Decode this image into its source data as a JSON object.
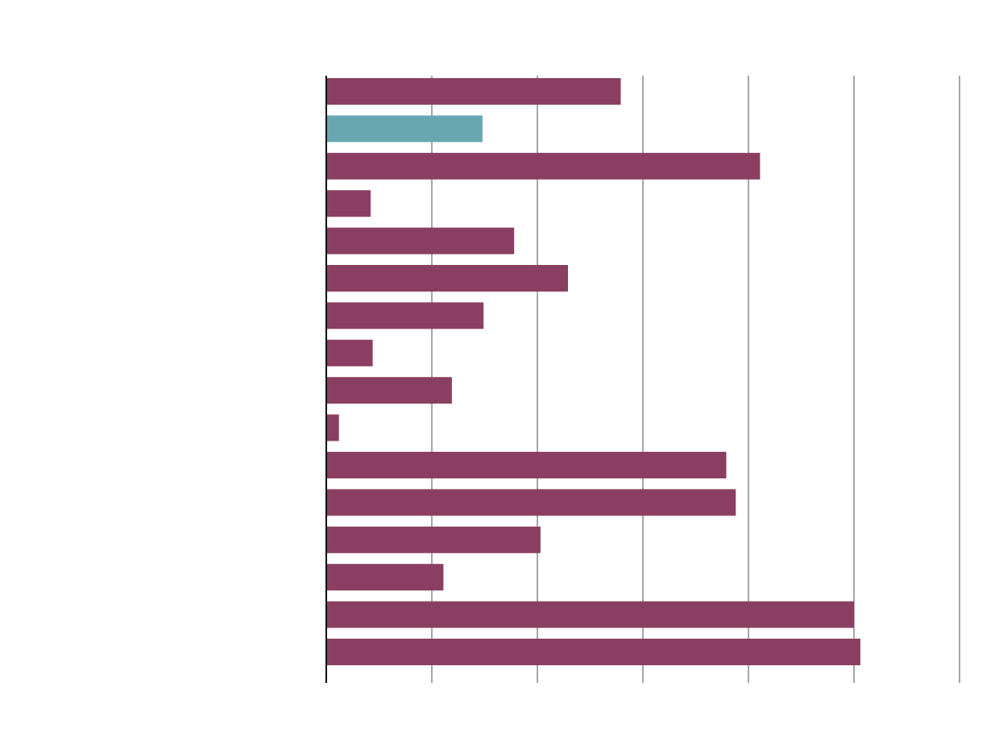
{
  "chart_data": {
    "type": "bar",
    "orientation": "horizontal",
    "title": "",
    "xlabel": "",
    "ylabel": "",
    "xlim": [
      0,
      6
    ],
    "grid": true,
    "gridlines_at": [
      0,
      1,
      2,
      3,
      4,
      5,
      6
    ],
    "tick_labels_visible": false,
    "bar_count": 16,
    "values": [
      2.79,
      1.48,
      4.11,
      0.42,
      1.78,
      2.29,
      1.49,
      0.44,
      1.19,
      0.12,
      3.79,
      3.88,
      2.03,
      1.11,
      5.0,
      5.06
    ],
    "highlight_index": 1,
    "colors": {
      "default": "#8a3f62",
      "highlight": "#6aa6b0",
      "grid": "#a6a6a6",
      "axis": "#000000",
      "background": "#ffffff"
    }
  }
}
